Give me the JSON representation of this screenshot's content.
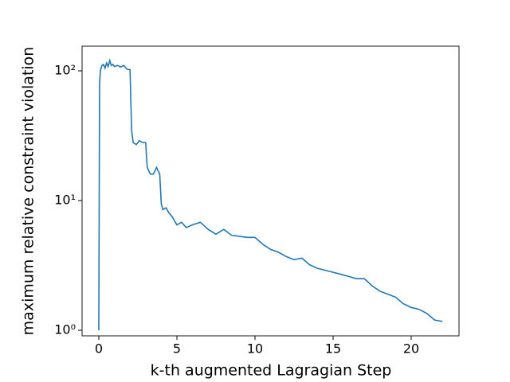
{
  "chart_data": {
    "type": "line",
    "xlabel": "k-th augmented Lagragian Step",
    "ylabel": "maximum relative constraint violation",
    "log_y": true,
    "xlim": [
      -1.07,
      23.06
    ],
    "ylim": [
      0.906,
      155
    ],
    "xticks": [
      0,
      5,
      10,
      15,
      20
    ],
    "yticks": [
      {
        "value": 1,
        "label": "10⁰"
      },
      {
        "value": 10,
        "label": "10¹"
      },
      {
        "value": 100,
        "label": "10²"
      }
    ],
    "series": [
      {
        "color": "#1f77b4",
        "x": [
          0,
          0.05,
          0.1,
          0.2,
          0.3,
          0.4,
          0.5,
          0.6,
          0.7,
          0.8,
          0.9,
          1.0,
          1.2,
          1.4,
          1.6,
          1.8,
          2.0,
          2.1,
          2.2,
          2.4,
          2.6,
          2.8,
          3.0,
          3.1,
          3.3,
          3.5,
          3.7,
          3.9,
          4.0,
          4.1,
          4.3,
          4.5,
          4.7,
          5.0,
          5.3,
          5.6,
          6.0,
          6.5,
          7.0,
          7.5,
          8.0,
          8.5,
          9.0,
          9.5,
          10.0,
          10.5,
          11.0,
          11.5,
          12.0,
          12.5,
          13.0,
          13.5,
          14.0,
          14.5,
          15.0,
          15.5,
          16.0,
          16.5,
          17.0,
          17.5,
          18.0,
          18.5,
          19.0,
          19.5,
          20.0,
          20.5,
          21.0,
          21.5,
          22.0
        ],
        "values": [
          1.0,
          80,
          100,
          110,
          112,
          105,
          115,
          108,
          120,
          110,
          112,
          108,
          110,
          107,
          110,
          103,
          102,
          35,
          28,
          27,
          29,
          28,
          28,
          18,
          16,
          16,
          18,
          16,
          9.5,
          8.5,
          8.8,
          8,
          7.5,
          6.5,
          6.8,
          6.2,
          6.5,
          6.8,
          6.0,
          5.5,
          6.0,
          5.4,
          5.3,
          5.2,
          5.2,
          4.6,
          4.2,
          4.0,
          3.7,
          3.5,
          3.6,
          3.2,
          3.0,
          2.9,
          2.8,
          2.7,
          2.6,
          2.5,
          2.5,
          2.2,
          2.0,
          1.9,
          1.8,
          1.6,
          1.5,
          1.45,
          1.35,
          1.2,
          1.17
        ]
      }
    ]
  }
}
